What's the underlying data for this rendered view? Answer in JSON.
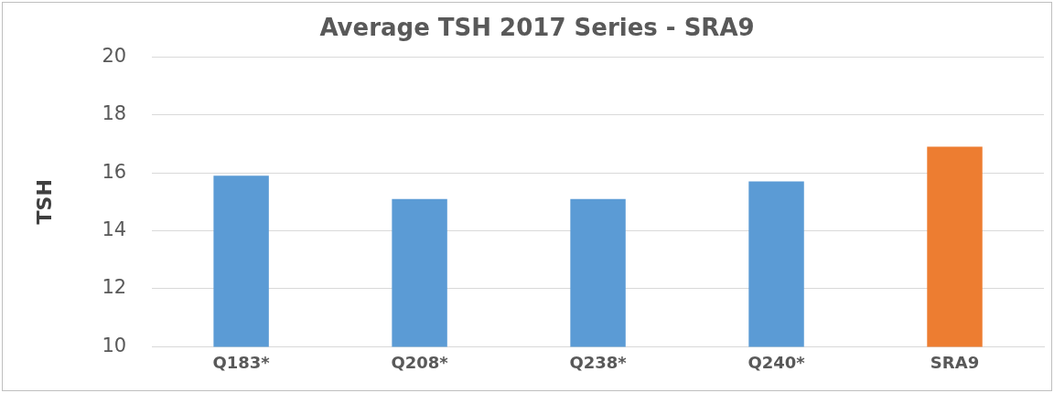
{
  "chart_data": {
    "type": "bar",
    "title": "Average TSH 2017 Series - SRA9",
    "ylabel": "TSH",
    "categories": [
      "Q183*",
      "Q208*",
      "Q238*",
      "Q240*",
      "SRA9"
    ],
    "values": [
      15.9,
      15.1,
      15.1,
      15.7,
      16.9
    ],
    "colors": [
      "#5b9bd5",
      "#5b9bd5",
      "#5b9bd5",
      "#5b9bd5",
      "#ed7d31"
    ],
    "ylim": [
      10,
      20
    ],
    "yticks": [
      10,
      12,
      14,
      16,
      18,
      20
    ],
    "grid": "y",
    "legend": false
  }
}
